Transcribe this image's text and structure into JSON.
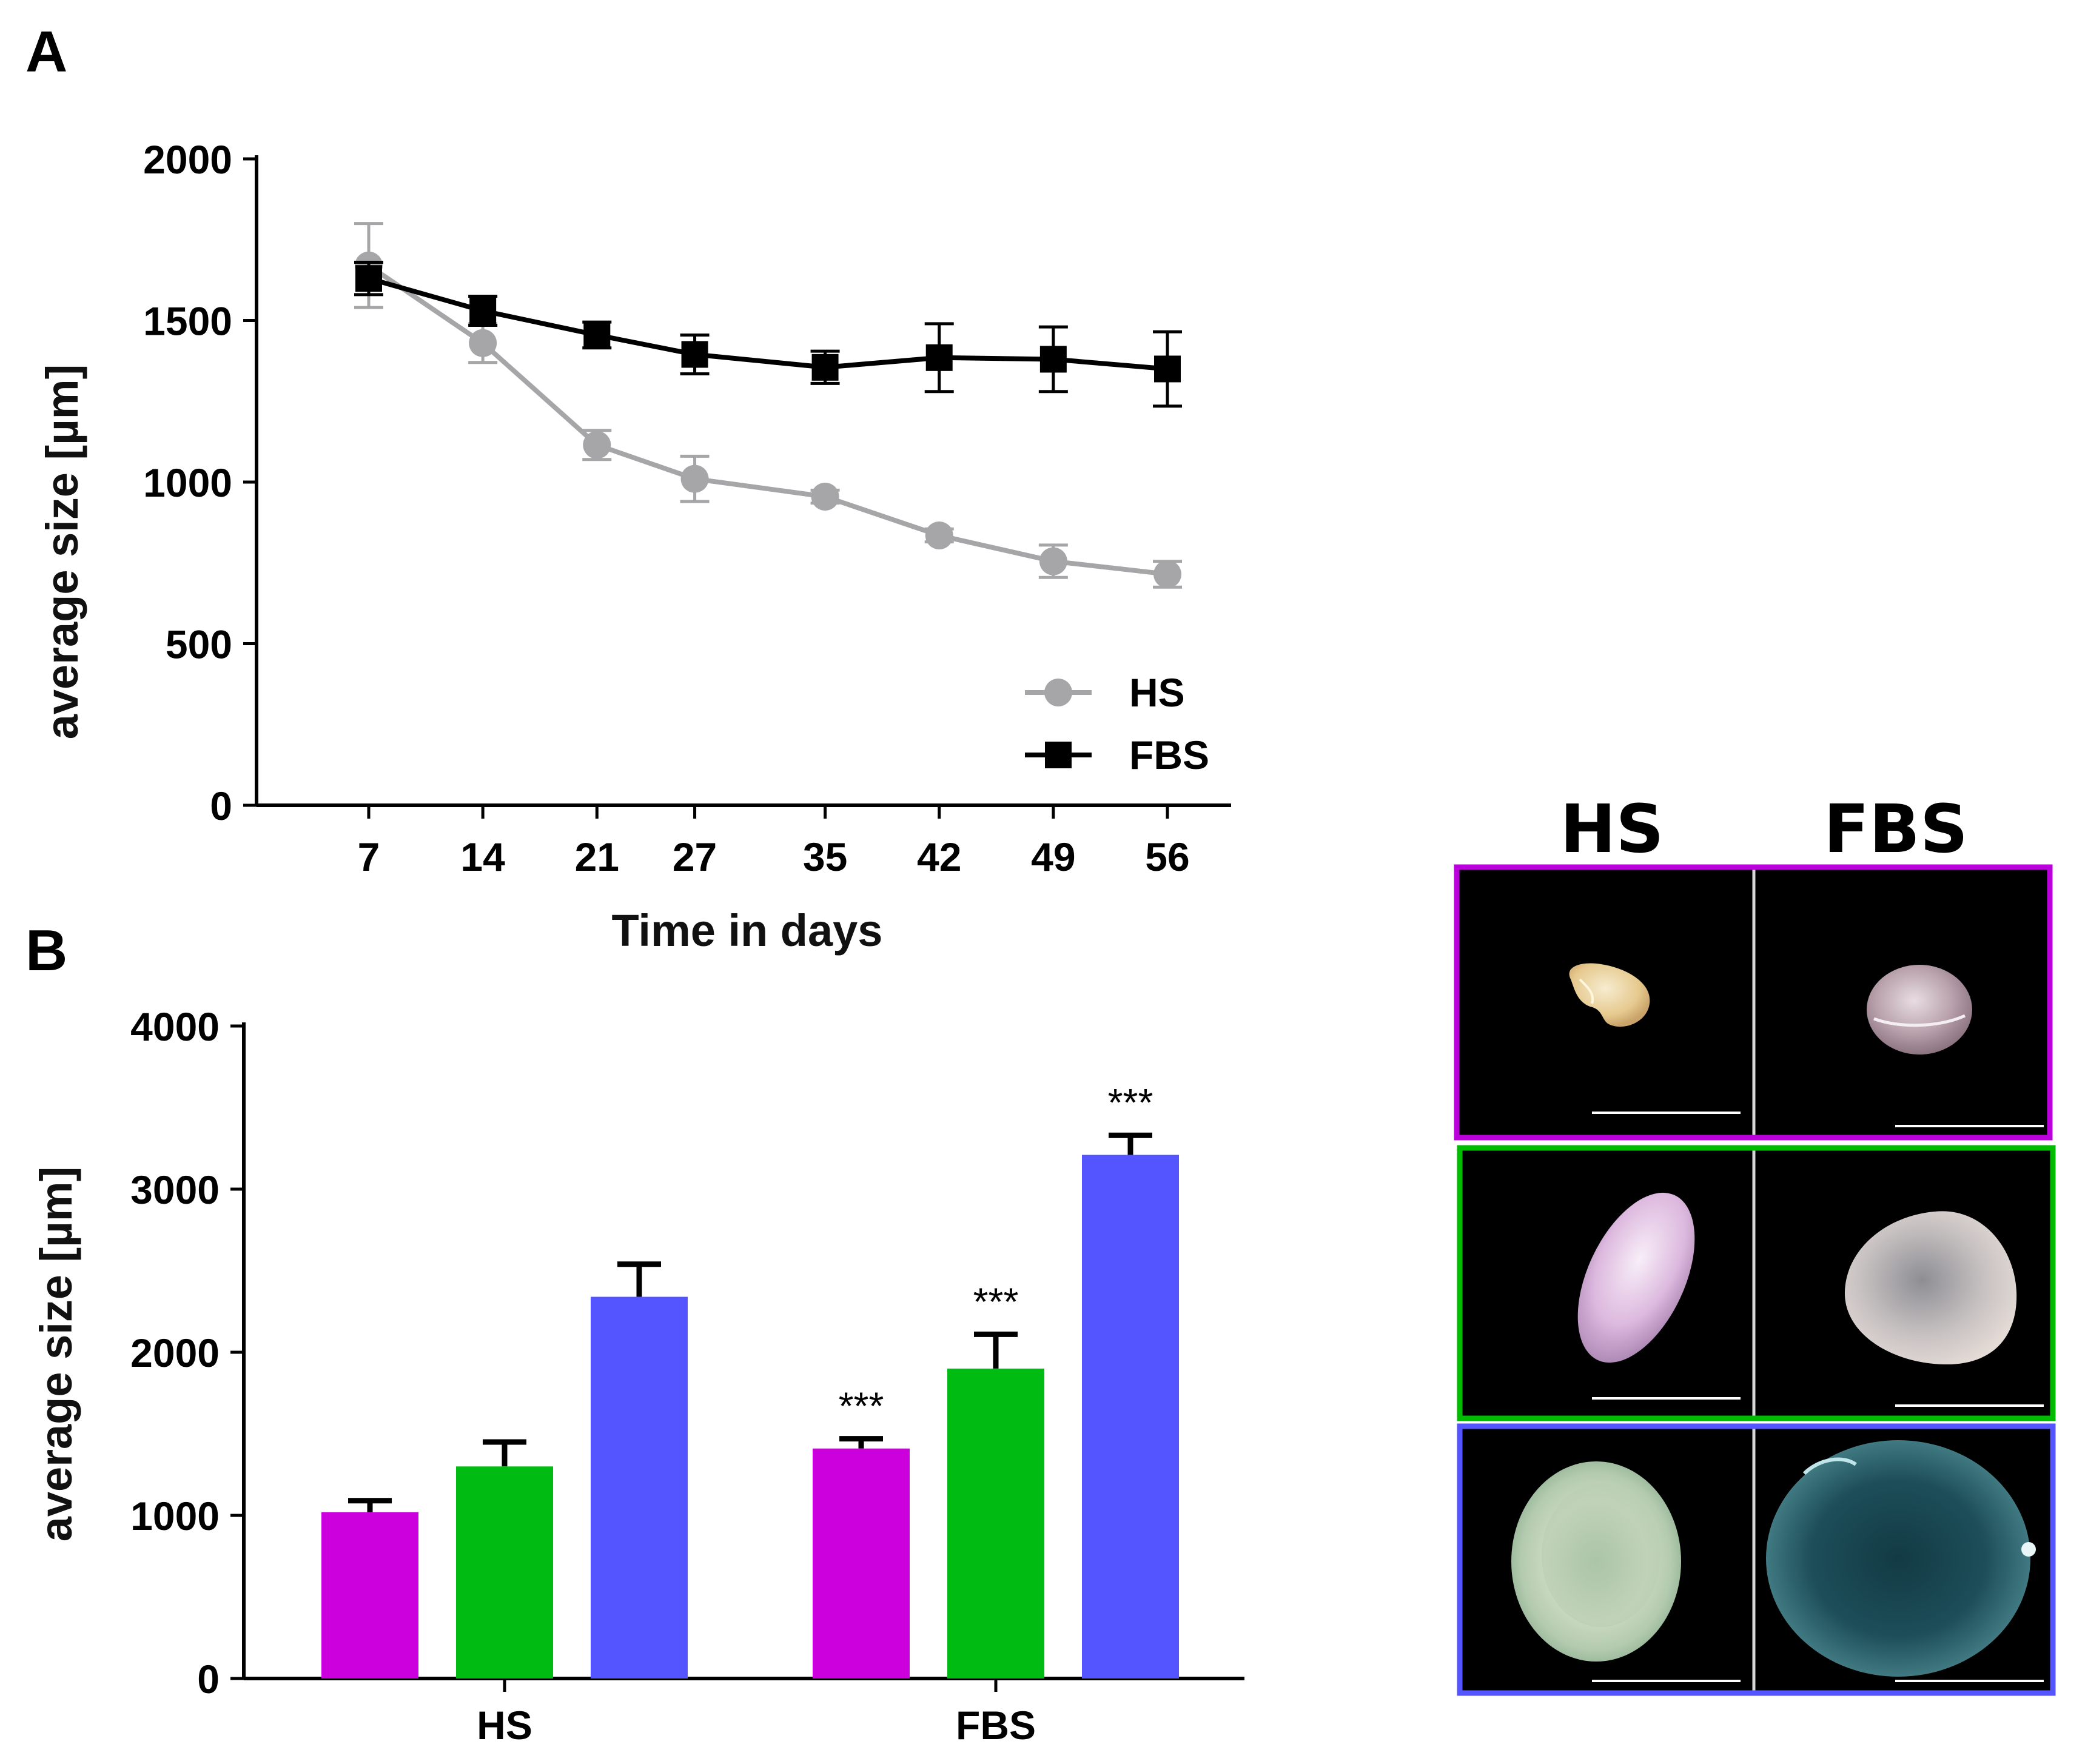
{
  "figure": {
    "panel_a_letter": "A",
    "panel_b_letter": "B"
  },
  "chart_data": [
    {
      "panel": "A",
      "type": "line",
      "title": "",
      "xlabel": "Time in days",
      "ylabel": "average size [µm]",
      "x": [
        7,
        14,
        21,
        27,
        35,
        42,
        49,
        56
      ],
      "x_tick_labels": [
        "7",
        "14",
        "21",
        "27",
        "35",
        "42",
        "49",
        "56"
      ],
      "y_ticks": [
        0,
        500,
        1000,
        1500,
        2000
      ],
      "y_tick_labels": [
        "0",
        "500",
        "1000",
        "1500",
        "2000"
      ],
      "ylim": [
        0,
        2000
      ],
      "legend_position": "bottom-right",
      "series": [
        {
          "name": "HS",
          "color": "#a6a6a8",
          "marker": "circle",
          "values": [
            1670,
            1430,
            1115,
            1010,
            955,
            835,
            755,
            715
          ],
          "errors": [
            130,
            60,
            45,
            70,
            20,
            20,
            50,
            40
          ]
        },
        {
          "name": "FBS",
          "color": "#000000",
          "marker": "square",
          "values": [
            1630,
            1530,
            1455,
            1395,
            1355,
            1385,
            1380,
            1350
          ],
          "errors": [
            50,
            45,
            40,
            60,
            50,
            105,
            100,
            115
          ]
        }
      ]
    },
    {
      "panel": "B",
      "type": "bar",
      "title": "",
      "xlabel": "",
      "ylabel": "average size [µm]",
      "categories": [
        "HS",
        "FBS"
      ],
      "y_ticks": [
        0,
        1000,
        2000,
        3000,
        4000
      ],
      "y_tick_labels": [
        "0",
        "1000",
        "2000",
        "3000",
        "4000"
      ],
      "ylim": [
        0,
        4000
      ],
      "bars_per_group": 3,
      "bar_colors": [
        "#cc00dd",
        "#00bb11",
        "#5555ff"
      ],
      "values": [
        [
          1020,
          1300,
          2340
        ],
        [
          1410,
          1900,
          3210
        ]
      ],
      "errors": [
        [
          70,
          150,
          200
        ],
        [
          60,
          210,
          120
        ]
      ],
      "significance": [
        [
          "",
          "",
          ""
        ],
        [
          "***",
          "***",
          "***"
        ]
      ]
    }
  ],
  "photos": {
    "col_headers": [
      "HS",
      "FBS"
    ],
    "row_frame_colors": [
      "#bb00dd",
      "#00bb00",
      "#5555ff"
    ]
  }
}
